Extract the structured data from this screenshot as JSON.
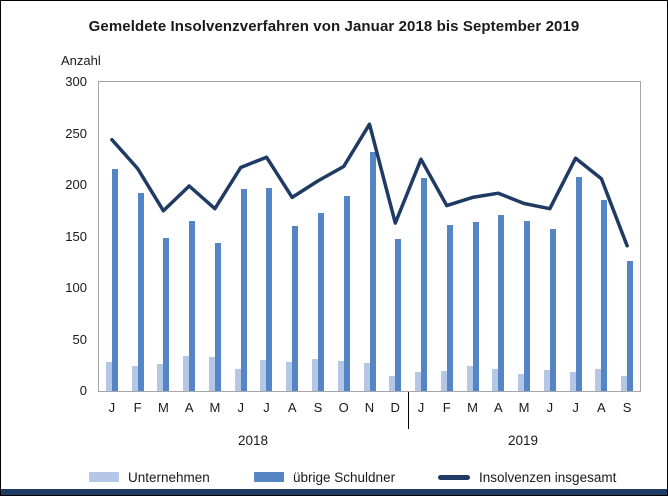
{
  "chart_data": {
    "type": "bar+line",
    "title": "Gemeldete Insolvenzverfahren von Januar 2018 bis September 2019",
    "ylabel": "Anzahl",
    "xlabel": "",
    "ylim": [
      0,
      300
    ],
    "yticks": [
      0,
      50,
      100,
      150,
      200,
      250,
      300
    ],
    "grid": false,
    "legend_position": "bottom",
    "categories": [
      "J",
      "F",
      "M",
      "A",
      "M",
      "J",
      "J",
      "A",
      "S",
      "O",
      "N",
      "D",
      "J",
      "F",
      "M",
      "A",
      "M",
      "J",
      "J",
      "A",
      "S"
    ],
    "year_groups": [
      {
        "label": "2018",
        "months": 12
      },
      {
        "label": "2019",
        "months": 9
      }
    ],
    "series": [
      {
        "name": "Unternehmen",
        "id": "unternehmen",
        "kind": "bar",
        "color": "#b4c7e7",
        "values": [
          28,
          24,
          26,
          34,
          33,
          21,
          30,
          28,
          31,
          29,
          27,
          15,
          18,
          19,
          24,
          21,
          17,
          20,
          18,
          21,
          15
        ]
      },
      {
        "name": "übrige Schuldner",
        "id": "uebrige-schuldner",
        "kind": "bar",
        "color": "#5585c5",
        "values": [
          216,
          192,
          149,
          165,
          144,
          196,
          197,
          160,
          173,
          189,
          232,
          148,
          207,
          161,
          164,
          171,
          165,
          157,
          208,
          185,
          126
        ]
      },
      {
        "name": "Insolvenzen insgesamt",
        "id": "insolvenzen-insgesamt",
        "kind": "line",
        "color": "#1f3a63",
        "values": [
          244,
          216,
          175,
          199,
          177,
          217,
          227,
          188,
          204,
          218,
          259,
          163,
          225,
          180,
          188,
          192,
          182,
          177,
          226,
          206,
          141
        ]
      }
    ]
  },
  "legend": {
    "items": [
      {
        "label": "Unternehmen"
      },
      {
        "label": "übrige Schuldner"
      },
      {
        "label": "Insolvenzen insgesamt"
      }
    ]
  },
  "colors": {
    "canvas_border": "#000000",
    "plot_border": "#a6a6a6",
    "footer_bar": "#1f3a63",
    "text": "#1a1a1a"
  }
}
